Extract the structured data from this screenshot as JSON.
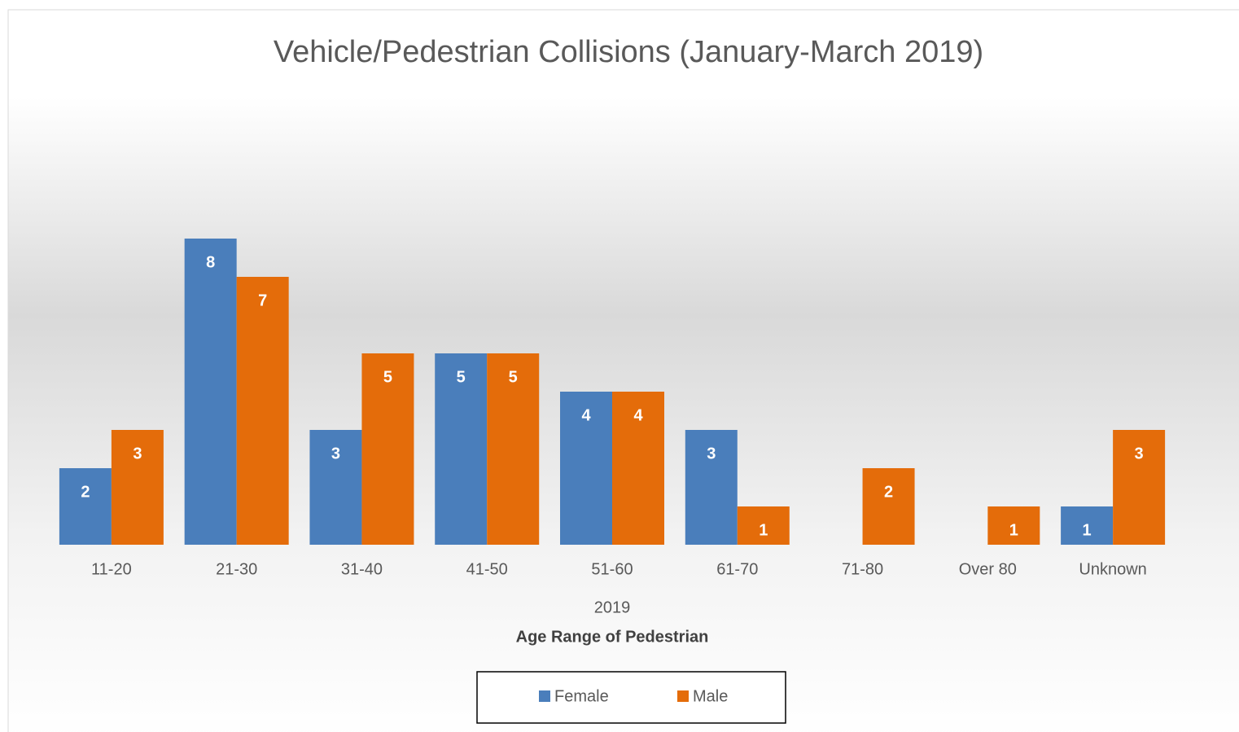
{
  "chart_data": {
    "type": "bar",
    "title": "Vehicle/Pedestrian Collisions (January-March 2019)",
    "categories": [
      "11-20",
      "21-30",
      "31-40",
      "41-50",
      "51-60",
      "61-70",
      "71-80",
      "Over 80",
      "Unknown"
    ],
    "group_label": "2019",
    "x_label": "Age Range of Pedestrian",
    "series": [
      {
        "name": "Female",
        "color": "#4a7ebb",
        "values": [
          2,
          8,
          3,
          5,
          4,
          3,
          null,
          null,
          1
        ]
      },
      {
        "name": "Male",
        "color": "#e46c0a",
        "values": [
          3,
          7,
          5,
          5,
          4,
          1,
          2,
          1,
          3
        ]
      }
    ],
    "ylim": [
      0,
      8
    ],
    "legend": "bottom"
  }
}
